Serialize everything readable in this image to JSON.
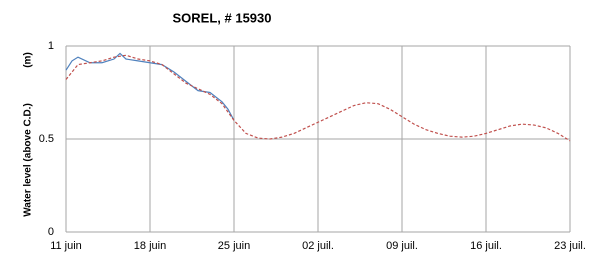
{
  "chart_data": {
    "type": "line",
    "title": "SOREL, # 15930",
    "y_label": "Water level (above C.D.)",
    "y_unit": "(m)",
    "xlim": [
      0,
      42
    ],
    "xticks": [
      {
        "value": 0,
        "label": "11 juin"
      },
      {
        "value": 7,
        "label": "18 juin"
      },
      {
        "value": 14,
        "label": "25 juin"
      },
      {
        "value": 21,
        "label": "02 juil."
      },
      {
        "value": 28,
        "label": "09 juil."
      },
      {
        "value": 35,
        "label": "16 juil."
      },
      {
        "value": 42,
        "label": "23 juil."
      }
    ],
    "ylim": [
      0,
      1
    ],
    "yticks": [
      0,
      0.5,
      1
    ],
    "grid": true,
    "series": [
      {
        "color": "#4f81bd",
        "dash": false,
        "x": [
          0,
          0.5,
          1,
          2,
          3,
          4,
          4.5,
          5,
          6,
          7,
          8,
          9,
          10,
          11,
          12,
          13,
          13.5,
          14
        ],
        "values": [
          0.87,
          0.92,
          0.94,
          0.91,
          0.91,
          0.93,
          0.96,
          0.93,
          0.92,
          0.91,
          0.9,
          0.86,
          0.81,
          0.76,
          0.75,
          0.7,
          0.66,
          0.6
        ]
      },
      {
        "color": "#c0504d",
        "dash": true,
        "x": [
          0,
          1,
          2,
          3,
          4,
          5,
          6,
          7,
          8,
          9,
          10,
          11,
          12,
          13,
          14,
          15,
          16,
          17,
          18,
          19,
          20,
          21,
          22,
          23,
          24,
          25,
          26,
          27,
          28,
          29,
          30,
          31,
          32,
          33,
          34,
          35,
          36,
          37,
          38,
          39,
          40,
          41,
          42
        ],
        "values": [
          0.82,
          0.9,
          0.91,
          0.92,
          0.94,
          0.95,
          0.93,
          0.92,
          0.9,
          0.85,
          0.8,
          0.77,
          0.74,
          0.69,
          0.6,
          0.53,
          0.505,
          0.5,
          0.51,
          0.53,
          0.56,
          0.59,
          0.62,
          0.65,
          0.68,
          0.695,
          0.69,
          0.66,
          0.62,
          0.58,
          0.55,
          0.53,
          0.515,
          0.51,
          0.515,
          0.53,
          0.55,
          0.57,
          0.58,
          0.575,
          0.56,
          0.53,
          0.49
        ]
      }
    ]
  }
}
